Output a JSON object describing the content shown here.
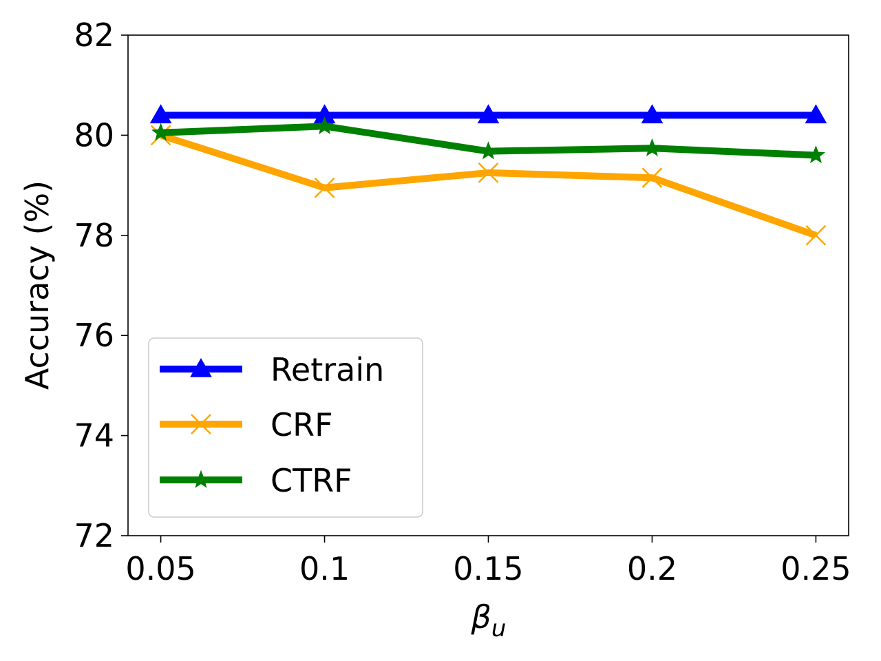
{
  "chart_data": {
    "type": "line",
    "x": [
      0.05,
      0.1,
      0.15,
      0.2,
      0.25
    ],
    "x_tick_labels": [
      "0.05",
      "0.1",
      "0.15",
      "0.2",
      "0.25"
    ],
    "xlabel_symbol": "β",
    "xlabel_subscript": "u",
    "ylabel": "Accuracy (%)",
    "ylim": [
      72,
      82
    ],
    "y_ticks": [
      72,
      74,
      76,
      78,
      80,
      82
    ],
    "grid": false,
    "legend_position": "lower-left",
    "series": [
      {
        "name": "Retrain",
        "color": "#0000ff",
        "marker": "triangle",
        "values": [
          80.4,
          80.4,
          80.4,
          80.4,
          80.4
        ]
      },
      {
        "name": "CRF",
        "color": "#ffa500",
        "marker": "x",
        "values": [
          80.0,
          78.95,
          79.25,
          79.15,
          78.0
        ]
      },
      {
        "name": "CTRF",
        "color": "#008000",
        "marker": "star",
        "values": [
          80.05,
          80.18,
          79.68,
          79.74,
          79.6
        ]
      }
    ]
  }
}
